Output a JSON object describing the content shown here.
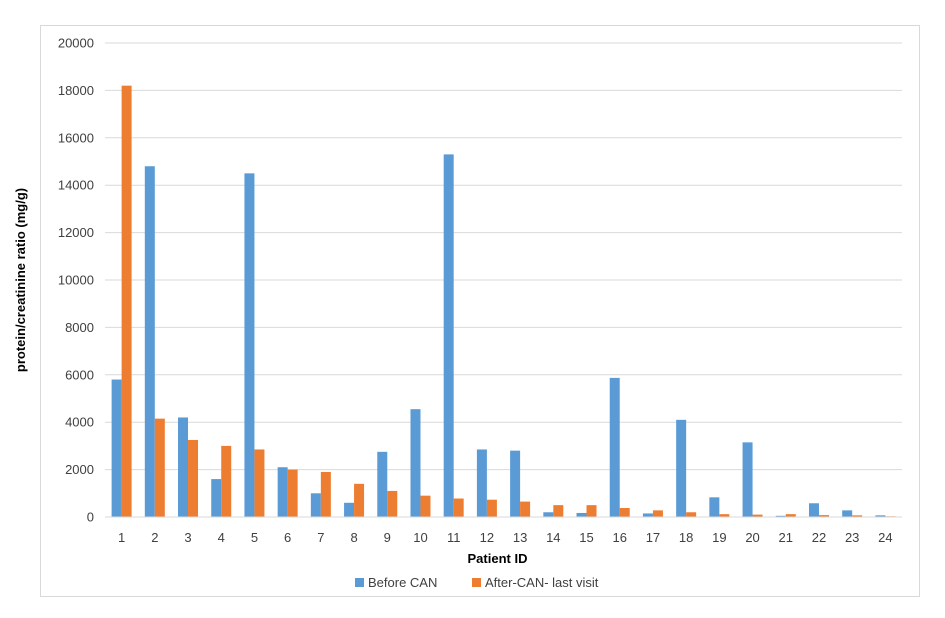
{
  "chart_data": {
    "type": "bar",
    "title": "",
    "xlabel": "Patient ID",
    "ylabel": "protein/creatinine ratio (mg/g)",
    "ylim": [
      0,
      20000
    ],
    "yticks": [
      0,
      2000,
      4000,
      6000,
      8000,
      10000,
      12000,
      14000,
      16000,
      18000,
      20000
    ],
    "grid": true,
    "legend_position": "bottom",
    "categories": [
      "1",
      "2",
      "3",
      "4",
      "5",
      "6",
      "7",
      "8",
      "9",
      "10",
      "11",
      "12",
      "13",
      "14",
      "15",
      "16",
      "17",
      "18",
      "19",
      "20",
      "21",
      "22",
      "23",
      "24"
    ],
    "series": [
      {
        "name": "Before CAN",
        "color": "#5b9bd5",
        "values": [
          5800,
          14800,
          4200,
          1600,
          14500,
          2100,
          1000,
          600,
          2750,
          4550,
          15300,
          2850,
          2800,
          200,
          170,
          5870,
          150,
          4100,
          830,
          3150,
          50,
          580,
          280,
          70
        ]
      },
      {
        "name": "After-CAN- last visit",
        "color": "#ed7d31",
        "values": [
          18200,
          4150,
          3250,
          3000,
          2850,
          2000,
          1900,
          1400,
          1100,
          900,
          780,
          730,
          650,
          500,
          500,
          380,
          280,
          200,
          120,
          100,
          120,
          80,
          70,
          30
        ]
      }
    ]
  }
}
